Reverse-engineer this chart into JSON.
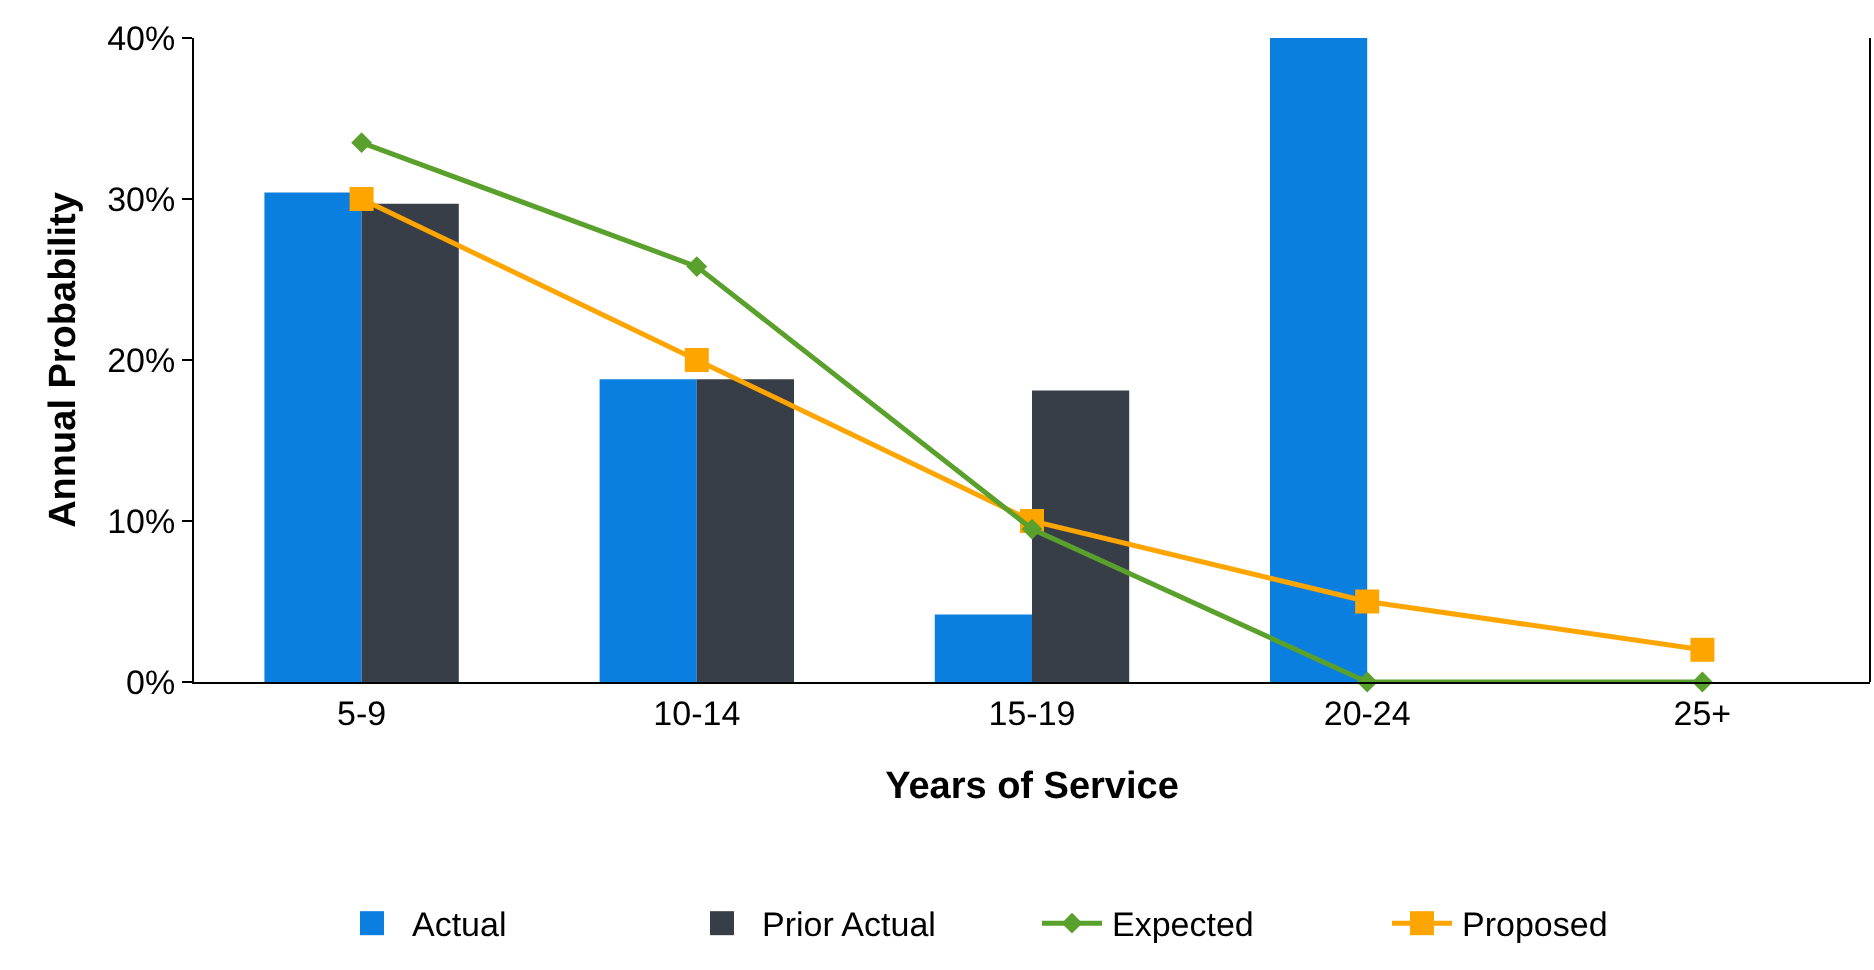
{
  "chart_data": {
    "type": "bar",
    "xlabel": "Years of Service",
    "ylabel": "Annual Probability",
    "categories": [
      "5-9",
      "10-14",
      "15-19",
      "20-24",
      "25+"
    ],
    "series": [
      {
        "name": "Actual",
        "color": "#0a7fe0",
        "values": [
          30.4,
          18.8,
          4.2,
          40,
          null
        ]
      },
      {
        "name": "Prior Actual",
        "color": "#383e48",
        "values": [
          29.7,
          18.8,
          18.1,
          null,
          null
        ]
      },
      {
        "name": "Expected",
        "type": "line",
        "color": "#5aa02c",
        "marker": "diamond",
        "values": [
          33.5,
          25.8,
          9.5,
          0,
          0
        ]
      },
      {
        "name": "Proposed",
        "type": "line",
        "color": "#ffa500",
        "marker": "square",
        "values": [
          30,
          20,
          10,
          5,
          2
        ]
      }
    ],
    "ylim": [
      0,
      40
    ],
    "yticks": [
      {
        "value": 0,
        "label": "0%"
      },
      {
        "value": 10,
        "label": "10%"
      },
      {
        "value": 20,
        "label": "20%"
      },
      {
        "value": 30,
        "label": "30%"
      },
      {
        "value": 40,
        "label": "40%"
      }
    ],
    "grid": false,
    "legend": "bottom"
  }
}
